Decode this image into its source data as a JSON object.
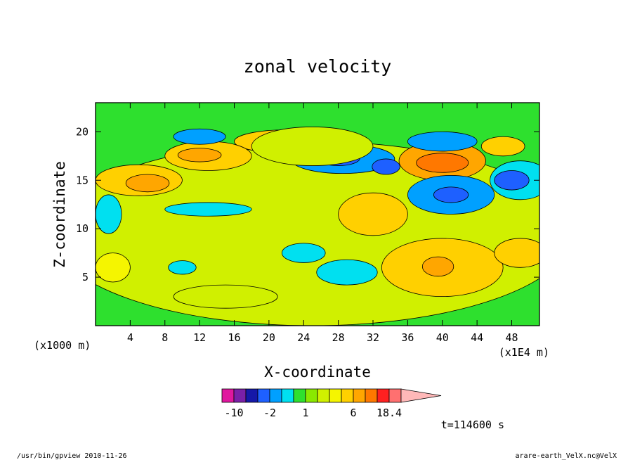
{
  "chart_data": {
    "type": "heatmap",
    "title": "zonal velocity",
    "xlabel": "X-coordinate",
    "ylabel": "Z-coordinate",
    "x_unit": "(x1000 m)",
    "x_scale_note": "(x1E4 m)",
    "xlim": [
      0,
      51.2
    ],
    "ylim": [
      0,
      23
    ],
    "x_ticks": [
      4,
      8,
      12,
      16,
      20,
      24,
      28,
      32,
      36,
      40,
      44,
      48
    ],
    "y_ticks": [
      5,
      10,
      15,
      20
    ],
    "time_label": "t=114600 s",
    "colorbar": {
      "labels": [
        "-10",
        "-2",
        "1",
        "6",
        "18.4"
      ],
      "label_values": [
        -10,
        -2,
        1,
        6,
        18.4
      ],
      "levels": [
        -14,
        -10,
        -6,
        -3,
        -2,
        -1,
        0,
        1,
        2,
        3,
        4,
        6,
        10,
        14,
        18.4
      ],
      "colors": [
        "#e0179f",
        "#7a20a8",
        "#1518a8",
        "#1e60ff",
        "#00a0ff",
        "#00e0f0",
        "#2ee02e",
        "#8ae800",
        "#d0f000",
        "#f5f500",
        "#ffd000",
        "#ffa600",
        "#ff7800",
        "#ff2020",
        "#ff7070",
        "#ffb8b8"
      ]
    },
    "regions": [
      {
        "cx": 5,
        "cy": 15,
        "rx": 5,
        "ry": 1.6,
        "value": 3
      },
      {
        "cx": 6,
        "cy": 14.7,
        "rx": 2.5,
        "ry": 0.9,
        "value": 5
      },
      {
        "cx": 22,
        "cy": 19,
        "rx": 6,
        "ry": 1.2,
        "value": 3
      },
      {
        "cx": 28.5,
        "cy": 17.2,
        "rx": 6,
        "ry": 1.5,
        "value": -3
      },
      {
        "cx": 28,
        "cy": 17.3,
        "rx": 2.5,
        "ry": 0.8,
        "value": -5
      },
      {
        "cx": 33.5,
        "cy": 16.4,
        "rx": 1.6,
        "ry": 0.8,
        "value": -4
      },
      {
        "cx": 40,
        "cy": 17,
        "rx": 5,
        "ry": 2,
        "value": 5
      },
      {
        "cx": 40,
        "cy": 16.8,
        "rx": 3,
        "ry": 1,
        "value": 8
      },
      {
        "cx": 40,
        "cy": 19,
        "rx": 4,
        "ry": 1,
        "value": -3
      },
      {
        "cx": 41,
        "cy": 13.5,
        "rx": 5,
        "ry": 2,
        "value": -3
      },
      {
        "cx": 41,
        "cy": 13.5,
        "rx": 2,
        "ry": 0.8,
        "value": -5
      },
      {
        "cx": 49,
        "cy": 15,
        "rx": 3.5,
        "ry": 2,
        "value": -2
      },
      {
        "cx": 48,
        "cy": 15,
        "rx": 2,
        "ry": 1,
        "value": -4
      },
      {
        "cx": 47,
        "cy": 18.5,
        "rx": 2.5,
        "ry": 1,
        "value": 3
      },
      {
        "cx": 13,
        "cy": 17.5,
        "rx": 5,
        "ry": 1.5,
        "value": 3
      },
      {
        "cx": 12,
        "cy": 17.6,
        "rx": 2.5,
        "ry": 0.7,
        "value": 5
      },
      {
        "cx": 32,
        "cy": 11.5,
        "rx": 4,
        "ry": 2.2,
        "value": 3
      },
      {
        "cx": 40,
        "cy": 6,
        "rx": 7,
        "ry": 3,
        "value": 3
      },
      {
        "cx": 39.5,
        "cy": 6.1,
        "rx": 1.8,
        "ry": 1,
        "value": 5
      },
      {
        "cx": 49,
        "cy": 7.5,
        "rx": 3,
        "ry": 1.5,
        "value": 3
      },
      {
        "cx": 29,
        "cy": 5.5,
        "rx": 3.5,
        "ry": 1.3,
        "value": -2
      },
      {
        "cx": 24,
        "cy": 7.5,
        "rx": 2.5,
        "ry": 1,
        "value": -2
      },
      {
        "cx": 10,
        "cy": 6,
        "rx": 1.6,
        "ry": 0.7,
        "value": -2
      },
      {
        "cx": 1.5,
        "cy": 11.5,
        "rx": 1.5,
        "ry": 2,
        "value": -2
      },
      {
        "cx": 13,
        "cy": 12,
        "rx": 5,
        "ry": 0.7,
        "value": -2
      },
      {
        "cx": 12,
        "cy": 19.5,
        "rx": 3,
        "ry": 0.8,
        "value": -3
      },
      {
        "cx": 2,
        "cy": 6,
        "rx": 2,
        "ry": 1.5,
        "value": 2
      },
      {
        "cx": 15,
        "cy": 3,
        "rx": 6,
        "ry": 1.2,
        "value": 1.5
      },
      {
        "cx": 25,
        "cy": 18.5,
        "rx": 7,
        "ry": 2,
        "value": 1.5
      }
    ]
  },
  "footer": {
    "left": "/usr/bin/gpview   2010-11-26",
    "right": "arare-earth_VelX.nc@VelX"
  }
}
